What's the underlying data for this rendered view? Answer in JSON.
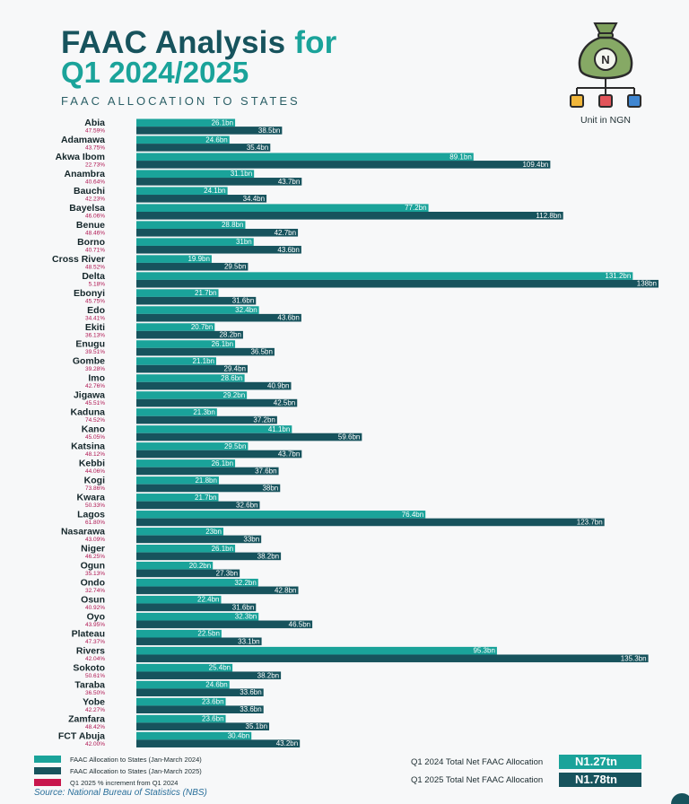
{
  "header": {
    "title_main": "FAAC Analysis",
    "title_accent": "for",
    "title_line2": "Q1 2024/2025",
    "subtitle": "FAAC ALLOCATION TO STATES",
    "unit_note": "Unit in NGN",
    "logo_icon": "money-bag-flow-icon",
    "logo_bag_symbol": "N"
  },
  "colors": {
    "q1_2024": "#1aa39a",
    "q1_2025": "#17535d",
    "pct": "#b01652",
    "title_dark": "#17535d",
    "title_accent": "#1aa39a"
  },
  "chart_data": {
    "type": "bar",
    "orientation": "horizontal",
    "categories": [
      "Abia",
      "Adamawa",
      "Akwa Ibom",
      "Anambra",
      "Bauchi",
      "Bayelsa",
      "Benue",
      "Borno",
      "Cross River",
      "Delta",
      "Ebonyi",
      "Edo",
      "Ekiti",
      "Enugu",
      "Gombe",
      "Imo",
      "Jigawa",
      "Kaduna",
      "Kano",
      "Katsina",
      "Kebbi",
      "Kogi",
      "Kwara",
      "Lagos",
      "Nasarawa",
      "Niger",
      "Ogun",
      "Ondo",
      "Osun",
      "Oyo",
      "Plateau",
      "Rivers",
      "Sokoto",
      "Taraba",
      "Yobe",
      "Zamfara",
      "FCT Abuja"
    ],
    "series": [
      {
        "name": "FAAC Allocation to States (Jan-March 2024)",
        "values": [
          26.1,
          24.6,
          89.1,
          31.1,
          24.1,
          77.2,
          28.8,
          31,
          19.9,
          131.2,
          21.7,
          32.4,
          20.7,
          26.1,
          21.1,
          28.6,
          29.2,
          21.3,
          41.1,
          29.5,
          26.1,
          21.8,
          21.7,
          76.4,
          23,
          26.1,
          20.2,
          32.2,
          22.4,
          32.3,
          22.5,
          95.3,
          25.4,
          24.6,
          23.6,
          23.6,
          30.4
        ],
        "labels": [
          "26.1bn",
          "24.6bn",
          "89.1bn",
          "31.1bn",
          "24.1bn",
          "77.2bn",
          "28.8bn",
          "31bn",
          "19.9bn",
          "131.2bn",
          "21.7bn",
          "32.4bn",
          "20.7bn",
          "26.1bn",
          "21.1bn",
          "28.6bn",
          "29.2bn",
          "21.3bn",
          "41.1bn",
          "29.5bn",
          "26.1bn",
          "21.8bn",
          "21.7bn",
          "76.4bn",
          "23bn",
          "26.1bn",
          "20.2bn",
          "32.2bn",
          "22.4bn",
          "32.3bn",
          "22.5bn",
          "95.3bn",
          "25.4bn",
          "24.6bn",
          "23.6bn",
          "23.6bn",
          "30.4bn"
        ]
      },
      {
        "name": "FAAC Allocation to States (Jan-March 2025)",
        "values": [
          38.5,
          35.4,
          109.4,
          43.7,
          34.4,
          112.8,
          42.7,
          43.6,
          29.5,
          138,
          31.6,
          43.6,
          28.2,
          36.5,
          29.4,
          40.9,
          42.5,
          37.2,
          59.6,
          43.7,
          37.6,
          38,
          32.6,
          123.7,
          33,
          38.2,
          27.3,
          42.8,
          31.6,
          46.5,
          33.1,
          135.3,
          38.2,
          33.6,
          33.6,
          35.1,
          43.2
        ],
        "labels": [
          "38.5bn",
          "35.4bn",
          "109.4bn",
          "43.7bn",
          "34.4bn",
          "112.8bn",
          "42.7bn",
          "43.6bn",
          "29.5bn",
          "138bn",
          "31.6bn",
          "43.6bn",
          "28.2bn",
          "36.5bn",
          "29.4bn",
          "40.9bn",
          "42.5bn",
          "37.2bn",
          "59.6bn",
          "43.7bn",
          "37.6bn",
          "38bn",
          "32.6bn",
          "123.7bn",
          "33bn",
          "38.2bn",
          "27.3bn",
          "42.8bn",
          "31.6bn",
          "46.5bn",
          "33.1bn",
          "135.3bn",
          "38.2bn",
          "33.6bn",
          "33.6bn",
          "35.1bn",
          "43.2bn"
        ]
      }
    ],
    "pct_series": {
      "name": "Q1 2025 % increment from Q1 2024",
      "values": [
        "47.59%",
        "43.75%",
        "22.73%",
        "40.64%",
        "42.23%",
        "46.06%",
        "48.46%",
        "40.71%",
        "48.52%",
        "5.18%",
        "45.75%",
        "34.41%",
        "36.13%",
        "39.51%",
        "39.28%",
        "42.76%",
        "45.51%",
        "74.52%",
        "45.05%",
        "48.12%",
        "44.06%",
        "73.86%",
        "50.33%",
        "61.80%",
        "43.09%",
        "46.25%",
        "35.13%",
        "32.74%",
        "40.92%",
        "43.95%",
        "47.37%",
        "42.04%",
        "50.61%",
        "36.50%",
        "42.27%",
        "48.42%",
        "42.00%"
      ]
    },
    "xlim": [
      0,
      138
    ],
    "legend_position": "bottom-left",
    "grid": false
  },
  "legend": {
    "items": [
      {
        "label": "FAAC Allocation to States (Jan-March 2024)",
        "color": "#1aa39a"
      },
      {
        "label": "FAAC Allocation to States (Jan-March 2025)",
        "color": "#17535d"
      },
      {
        "label": "Q1 2025 % increment from Q1 2024",
        "color": "#c8174d"
      }
    ]
  },
  "totals": {
    "q1_2024_label": "Q1 2024 Total Net FAAC Allocation",
    "q1_2024_value": "N1.27tn",
    "q1_2025_label": "Q1 2025 Total Net FAAC Allocation",
    "q1_2025_value": "N1.78tn"
  },
  "source": "Source: National Bureau of Statistics (NBS)"
}
